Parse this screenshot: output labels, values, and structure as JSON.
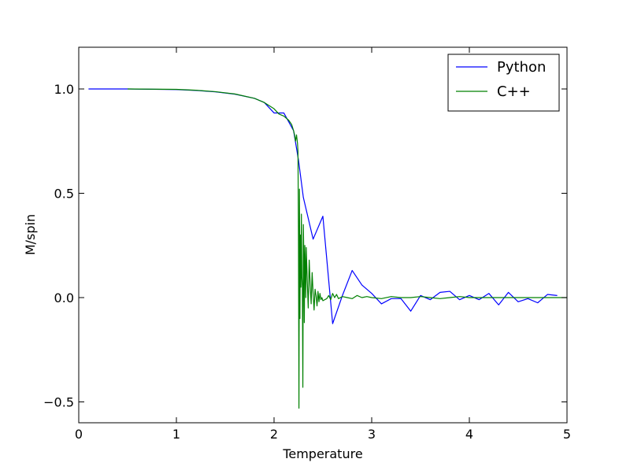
{
  "chart_data": {
    "type": "line",
    "xlabel": "Temperature",
    "ylabel": "M/spin",
    "xlim": [
      0,
      5
    ],
    "ylim": [
      -0.6,
      1.2
    ],
    "x_ticks": [
      0,
      1,
      2,
      3,
      4,
      5
    ],
    "x_tick_labels": [
      "0",
      "1",
      "2",
      "3",
      "4",
      "5"
    ],
    "y_ticks": [
      -0.5,
      0.0,
      0.5,
      1.0
    ],
    "y_tick_labels": [
      "−0.5",
      "0.0",
      "0.5",
      "1.0"
    ],
    "grid": false,
    "legend_position": "top-right",
    "series": [
      {
        "name": "Python",
        "color": "#0000ff",
        "x": [
          0.1,
          0.5,
          1.0,
          1.2,
          1.4,
          1.6,
          1.8,
          1.9,
          2.0,
          2.1,
          2.2,
          2.25,
          2.3,
          2.4,
          2.5,
          2.6,
          2.7,
          2.8,
          2.9,
          3.0,
          3.1,
          3.2,
          3.3,
          3.4,
          3.5,
          3.6,
          3.7,
          3.8,
          3.9,
          4.0,
          4.1,
          4.2,
          4.3,
          4.4,
          4.5,
          4.6,
          4.7,
          4.8,
          4.9
        ],
        "y": [
          1.0,
          1.0,
          0.997,
          0.993,
          0.986,
          0.975,
          0.955,
          0.935,
          0.885,
          0.885,
          0.8,
          0.66,
          0.48,
          0.28,
          0.39,
          -0.125,
          0.01,
          0.13,
          0.06,
          0.02,
          -0.03,
          -0.005,
          -0.005,
          -0.065,
          0.01,
          -0.01,
          0.025,
          0.03,
          -0.01,
          0.01,
          -0.01,
          0.02,
          -0.035,
          0.025,
          -0.02,
          -0.005,
          -0.025,
          0.015,
          0.01
        ]
      },
      {
        "name": "C++",
        "color": "#008000",
        "x": [
          0.5,
          1.0,
          1.2,
          1.4,
          1.6,
          1.8,
          1.9,
          2.0,
          2.05,
          2.1,
          2.15,
          2.18,
          2.2,
          2.21,
          2.22,
          2.23,
          2.24,
          2.245,
          2.25,
          2.255,
          2.26,
          2.265,
          2.27,
          2.275,
          2.28,
          2.285,
          2.29,
          2.295,
          2.3,
          2.305,
          2.31,
          2.315,
          2.32,
          2.325,
          2.33,
          2.34,
          2.35,
          2.36,
          2.37,
          2.38,
          2.39,
          2.4,
          2.41,
          2.42,
          2.43,
          2.44,
          2.45,
          2.46,
          2.47,
          2.48,
          2.49,
          2.5,
          2.52,
          2.54,
          2.56,
          2.58,
          2.6,
          2.62,
          2.64,
          2.66,
          2.7,
          2.75,
          2.8,
          2.85,
          2.9,
          2.95,
          3.0,
          3.1,
          3.2,
          3.3,
          3.4,
          3.5,
          3.6,
          3.7,
          3.8,
          3.9,
          4.0,
          4.2,
          4.4,
          4.6,
          4.8,
          5.0
        ],
        "y": [
          1.0,
          0.998,
          0.994,
          0.987,
          0.976,
          0.955,
          0.935,
          0.905,
          0.88,
          0.87,
          0.85,
          0.83,
          0.8,
          0.78,
          0.75,
          0.78,
          0.74,
          0.7,
          0.3,
          -0.53,
          0.52,
          -0.1,
          0.3,
          0.05,
          0.4,
          0.1,
          0.05,
          -0.43,
          0.35,
          0.2,
          -0.12,
          0.25,
          0.15,
          0.0,
          0.24,
          0.08,
          -0.05,
          0.18,
          0.06,
          -0.03,
          0.12,
          0.02,
          -0.06,
          0.04,
          0.01,
          -0.04,
          0.03,
          -0.02,
          0.02,
          -0.01,
          0.0,
          -0.015,
          -0.01,
          -0.005,
          0.01,
          -0.01,
          0.02,
          0.0,
          0.015,
          -0.005,
          0.005,
          0.0,
          -0.005,
          0.01,
          0.0,
          0.005,
          0.0,
          -0.005,
          0.005,
          0.0,
          0.0,
          0.005,
          0.0,
          -0.005,
          0.0,
          0.005,
          0.0,
          0.0,
          0.0,
          0.0,
          0.0,
          0.0
        ]
      }
    ]
  }
}
